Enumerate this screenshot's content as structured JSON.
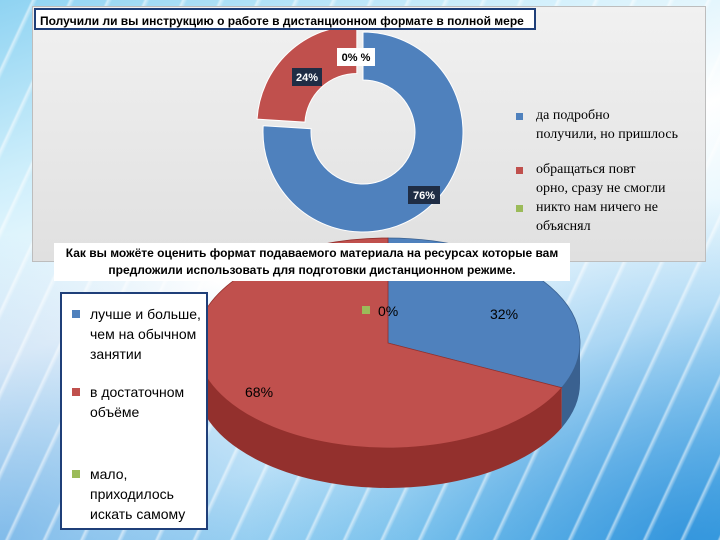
{
  "colors": {
    "blue": "#4f81bd",
    "red": "#c0504d",
    "green": "#9bbb59"
  },
  "chart_data": [
    {
      "type": "pie",
      "style": "donut",
      "title": "Получили ли вы инструкцию о работе в дистанционном  формате в полной мере",
      "categories": [
        "да подробно получили,  но пришлось",
        "обращаться  повт орно, сразу  не смогли",
        "никто нам ничего не объяснял"
      ],
      "values": [
        76,
        24,
        0
      ],
      "data_labels": [
        "76%",
        "24%",
        "0% %"
      ],
      "legend_position": "right"
    },
    {
      "type": "pie",
      "style": "3d",
      "title": "Как вы можёте оценить формат подаваемого материала на ресурсах которые вам предложили использовать для подготовки дистанционном  режиме.",
      "categories": [
        "лучше и больше, чем на обычном занятии",
        "в достаточном объёме",
        "мало, приходилось искать самому"
      ],
      "values": [
        32,
        68,
        0
      ],
      "data_labels": [
        "32%",
        "68%",
        "0%"
      ],
      "legend_position": "left"
    }
  ],
  "legend_top": [
    {
      "lines": [
        "да подробно",
        "получили,  но пришлось"
      ],
      "color": "#4f81bd"
    },
    {
      "lines": [
        "обращаться  повт",
        "орно, сразу  не смогли"
      ],
      "color": "#c0504d"
    },
    {
      "lines": [
        "никто нам ничего не",
        "объяснял"
      ],
      "color": "#9bbb59"
    }
  ],
  "legend_bottom": [
    {
      "lines": [
        "лучше и больше,",
        "чем на обычном",
        "занятии"
      ],
      "color": "#4f81bd"
    },
    {
      "lines": [
        "в достаточном",
        "объёме"
      ],
      "color": "#c0504d"
    },
    {
      "lines": [
        "мало,",
        "приходилось",
        "искать самому"
      ],
      "color": "#9bbb59"
    }
  ]
}
